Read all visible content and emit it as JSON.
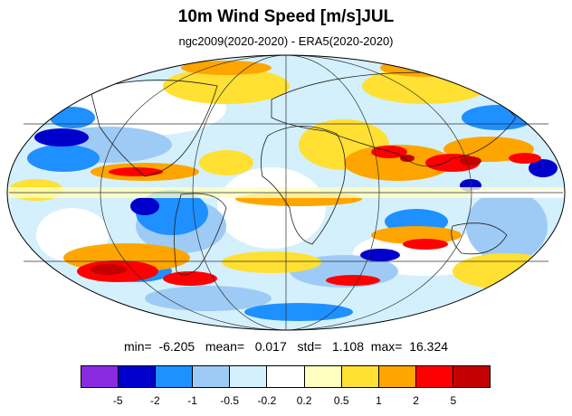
{
  "title": "10m Wind Speed [m/s]JUL",
  "subtitle": "ngc2009(2020-2020) - ERA5(2020-2020)",
  "stats": {
    "min_label": "min=",
    "min": "-6.205",
    "mean_label": "mean=",
    "mean": "0.017",
    "std_label": "std=",
    "std": "1.108",
    "max_label": "max=",
    "max": "16.324"
  },
  "colorbar": {
    "colors": [
      "#8a2be2",
      "#0000cd",
      "#1e90ff",
      "#9ecbf5",
      "#d4f0fc",
      "#ffffff",
      "#ffffc0",
      "#ffe033",
      "#ffa500",
      "#ff0000",
      "#c40000"
    ],
    "ticks": [
      "-5",
      "-2",
      "-1",
      "-0.5",
      "-0.2",
      "0.2",
      "0.5",
      "1",
      "2",
      "5"
    ]
  }
}
